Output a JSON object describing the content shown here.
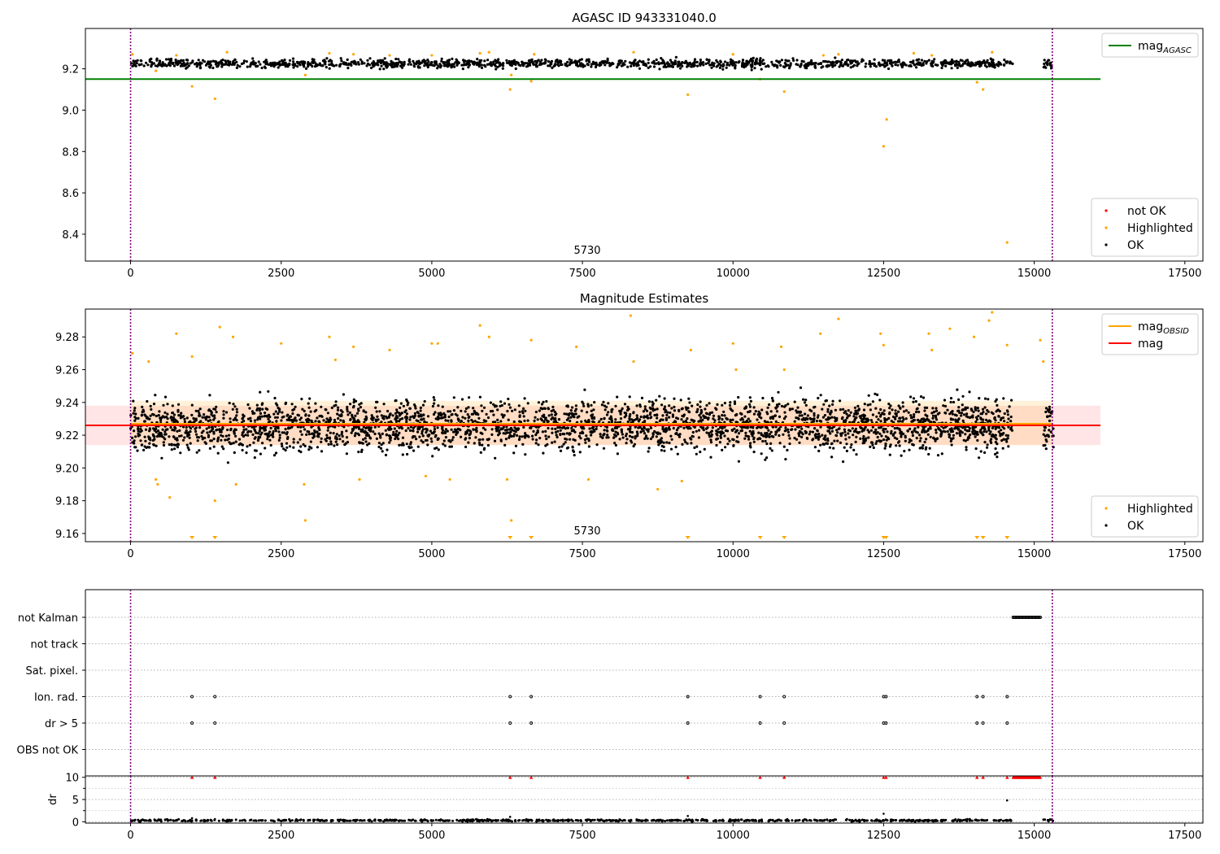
{
  "chart_data": [
    {
      "type": "scatter",
      "title": "AGASC ID 943331040.0",
      "xlabel": "",
      "ylabel": "",
      "xlim": [
        -750,
        17800
      ],
      "ylim": [
        8.27,
        9.395
      ],
      "xticks": [
        0,
        2500,
        5000,
        7500,
        10000,
        12500,
        15000,
        17500
      ],
      "yticks": [
        8.4,
        8.6,
        8.8,
        9.0,
        9.2
      ],
      "ytick_decimals": 1,
      "grid": false,
      "legend_upper": {
        "placement": "top-right",
        "entries": [
          {
            "label": "mag",
            "sub": "AGASC",
            "color": "#008000",
            "kind": "line"
          }
        ]
      },
      "legend_lower": {
        "placement": "bottom-right",
        "entries": [
          {
            "label": "not OK",
            "color": "#ff0000",
            "kind": "dot"
          },
          {
            "label": "Highlighted",
            "color": "#ffa500",
            "kind": "dot"
          },
          {
            "label": "OK",
            "color": "#000000",
            "kind": "dot"
          }
        ]
      },
      "annotation": {
        "text": "5730",
        "x": 7580
      },
      "vlines": [
        0,
        15300
      ],
      "vline_color": "#800080",
      "hlines": [
        {
          "name": "mag_AGASC",
          "y": 9.15,
          "x": [
            -750,
            16100
          ],
          "color": "#008000"
        }
      ],
      "series": [
        {
          "name": "OK",
          "color": "#000000",
          "kind": "band",
          "segments": [
            [
              0,
              14650
            ],
            [
              15150,
              15320
            ]
          ],
          "center": 9.225,
          "spread": 0.035,
          "n": 1400
        },
        {
          "name": "Highlighted",
          "color": "#ffa500",
          "kind": "points",
          "points": [
            [
              30,
              9.27
            ],
            [
              420,
              9.19
            ],
            [
              760,
              9.265
            ],
            [
              1020,
              9.115
            ],
            [
              1400,
              9.055
            ],
            [
              1600,
              9.28
            ],
            [
              2900,
              9.17
            ],
            [
              3300,
              9.275
            ],
            [
              3700,
              9.27
            ],
            [
              4300,
              9.265
            ],
            [
              5000,
              9.265
            ],
            [
              5800,
              9.275
            ],
            [
              5950,
              9.28
            ],
            [
              6300,
              9.1
            ],
            [
              6320,
              9.17
            ],
            [
              6650,
              9.14
            ],
            [
              6700,
              9.27
            ],
            [
              8350,
              9.28
            ],
            [
              9250,
              9.075
            ],
            [
              10000,
              9.27
            ],
            [
              10450,
              9.15
            ],
            [
              10850,
              9.09
            ],
            [
              11500,
              9.265
            ],
            [
              11750,
              9.27
            ],
            [
              12500,
              8.825
            ],
            [
              12550,
              8.955
            ],
            [
              13000,
              9.275
            ],
            [
              13300,
              9.265
            ],
            [
              14050,
              9.135
            ],
            [
              14150,
              9.1
            ],
            [
              14300,
              9.28
            ],
            [
              14550,
              8.36
            ]
          ]
        }
      ]
    },
    {
      "type": "scatter",
      "title": "Magnitude Estimates",
      "xlabel": "",
      "ylabel": "",
      "xlim": [
        -750,
        17800
      ],
      "ylim": [
        9.155,
        9.297
      ],
      "xticks": [
        0,
        2500,
        5000,
        7500,
        10000,
        12500,
        15000,
        17500
      ],
      "yticks": [
        9.16,
        9.18,
        9.2,
        9.22,
        9.24,
        9.26,
        9.28
      ],
      "ytick_decimals": 2,
      "grid": false,
      "legend_upper": {
        "placement": "top-right",
        "entries": [
          {
            "label": "mag",
            "sub": "OBSID",
            "color": "#ffa500",
            "kind": "line"
          },
          {
            "label": "mag",
            "sub": "",
            "color": "#ff0000",
            "kind": "line"
          }
        ]
      },
      "legend_lower": {
        "placement": "bottom-right",
        "entries": [
          {
            "label": "Highlighted",
            "color": "#ffa500",
            "kind": "dot"
          },
          {
            "label": "OK",
            "color": "#000000",
            "kind": "dot"
          }
        ]
      },
      "annotation": {
        "text": "5730",
        "x": 7580
      },
      "vlines": [
        0,
        15300
      ],
      "vline_color": "#800080",
      "bands": [
        {
          "name": "mag range",
          "x": [
            -750,
            16100
          ],
          "y": [
            9.214,
            9.238
          ],
          "color": "#ff0000",
          "opacity": 0.1
        },
        {
          "name": "mag_OBSID range",
          "x": [
            0,
            15300
          ],
          "y": [
            9.214,
            9.241
          ],
          "color": "#ffa500",
          "opacity": 0.15
        }
      ],
      "hlines": [
        {
          "name": "mag_OBSID",
          "y": 9.227,
          "x": [
            0,
            15300
          ],
          "color": "#ffa500"
        },
        {
          "name": "mag",
          "y": 9.226,
          "x": [
            -750,
            16100
          ],
          "color": "#ff0000"
        }
      ],
      "series": [
        {
          "name": "OK",
          "color": "#000000",
          "kind": "band",
          "segments": [
            [
              0,
              14650
            ],
            [
              15150,
              15320
            ]
          ],
          "center": 9.226,
          "spread": 0.026,
          "n": 3200
        },
        {
          "name": "Highlighted",
          "color": "#ffa500",
          "kind": "points",
          "points": [
            [
              30,
              9.27
            ],
            [
              300,
              9.265
            ],
            [
              420,
              9.193
            ],
            [
              450,
              9.19
            ],
            [
              650,
              9.182
            ],
            [
              760,
              9.282
            ],
            [
              1020,
              9.268
            ],
            [
              1400,
              9.18
            ],
            [
              1480,
              9.286
            ],
            [
              1700,
              9.28
            ],
            [
              1750,
              9.19
            ],
            [
              2500,
              9.276
            ],
            [
              2900,
              9.168
            ],
            [
              2880,
              9.19
            ],
            [
              3300,
              9.28
            ],
            [
              3400,
              9.266
            ],
            [
              3700,
              9.274
            ],
            [
              3800,
              9.193
            ],
            [
              4300,
              9.272
            ],
            [
              4900,
              9.195
            ],
            [
              5000,
              9.276
            ],
            [
              5100,
              9.276
            ],
            [
              5300,
              9.193
            ],
            [
              5800,
              9.287
            ],
            [
              5950,
              9.28
            ],
            [
              6250,
              9.193
            ],
            [
              6320,
              9.168
            ],
            [
              6650,
              9.278
            ],
            [
              7400,
              9.274
            ],
            [
              7600,
              9.193
            ],
            [
              8300,
              9.293
            ],
            [
              8350,
              9.265
            ],
            [
              8750,
              9.187
            ],
            [
              9150,
              9.192
            ],
            [
              9300,
              9.272
            ],
            [
              10000,
              9.276
            ],
            [
              10050,
              9.26
            ],
            [
              10800,
              9.274
            ],
            [
              10850,
              9.26
            ],
            [
              11450,
              9.282
            ],
            [
              11750,
              9.291
            ],
            [
              12450,
              9.282
            ],
            [
              12500,
              9.275
            ],
            [
              13250,
              9.282
            ],
            [
              13300,
              9.272
            ],
            [
              13600,
              9.285
            ],
            [
              14000,
              9.28
            ],
            [
              14250,
              9.29
            ],
            [
              14300,
              9.295
            ],
            [
              14550,
              9.275
            ],
            [
              15100,
              9.278
            ],
            [
              15150,
              9.265
            ]
          ]
        },
        {
          "name": "Highlighted (below range)",
          "color": "#ffa500",
          "kind": "markers_down",
          "x": [
            1020,
            1400,
            6300,
            6650,
            9250,
            10450,
            10850,
            12500,
            12540,
            14050,
            14150,
            14550
          ]
        }
      ]
    },
    {
      "type": "scatter",
      "title": "",
      "xlabel": "",
      "ylabel": "",
      "xlim": [
        -750,
        17800
      ],
      "ylim": [
        0,
        7
      ],
      "categories": [
        "OBS not OK",
        "dr > 5",
        "Ion. rad.",
        "Sat. pixel.",
        "not track",
        "not Kalman"
      ],
      "grid": true,
      "vlines": [
        0,
        15300
      ],
      "vline_color": "#800080",
      "series": [
        {
          "name": "dr > 5",
          "color": "#000000",
          "kind": "flags",
          "x": [
            1020,
            1400,
            6300,
            6650,
            9250,
            10450,
            10850,
            12500,
            12540,
            14050,
            14150,
            14550
          ]
        },
        {
          "name": "Ion. rad.",
          "color": "#000000",
          "kind": "flags",
          "x": [
            1020,
            1400,
            6300,
            6650,
            9250,
            10450,
            10850,
            12500,
            12540,
            14050,
            14150,
            14550
          ]
        },
        {
          "name": "not Kalman",
          "color": "#000000",
          "kind": "flag_run",
          "x": [
            14650,
            15100
          ]
        }
      ]
    },
    {
      "type": "scatter",
      "title": "",
      "xlabel": "",
      "ylabel": "dr",
      "xlim": [
        -750,
        17800
      ],
      "ylim": [
        -0.3,
        10.3
      ],
      "xticks": [
        0,
        2500,
        5000,
        7500,
        10000,
        12500,
        15000,
        17500
      ],
      "yticks": [
        0,
        5,
        10
      ],
      "grid": true,
      "vlines": [
        0,
        15300
      ],
      "vline_color": "#800080",
      "series": [
        {
          "name": "dr",
          "color": "#000000",
          "kind": "band",
          "segments": [
            [
              0,
              14650
            ],
            [
              15150,
              15320
            ]
          ],
          "center": 0.3,
          "spread": 0.35,
          "n": 800
        },
        {
          "name": "dr outliers",
          "color": "#000000",
          "kind": "points",
          "points": [
            [
              1020,
              0.8
            ],
            [
              1400,
              0.6
            ],
            [
              6300,
              1.1
            ],
            [
              9250,
              1.3
            ],
            [
              12500,
              1.8
            ],
            [
              14550,
              4.8
            ]
          ]
        },
        {
          "name": "dr clipped",
          "color": "#ff0000",
          "kind": "markers_up",
          "x": [
            1020,
            1400,
            6300,
            6650,
            9250,
            10450,
            10850,
            12500,
            12540,
            14050,
            14150,
            14550
          ],
          "run": [
            14650,
            15100
          ]
        }
      ]
    }
  ]
}
